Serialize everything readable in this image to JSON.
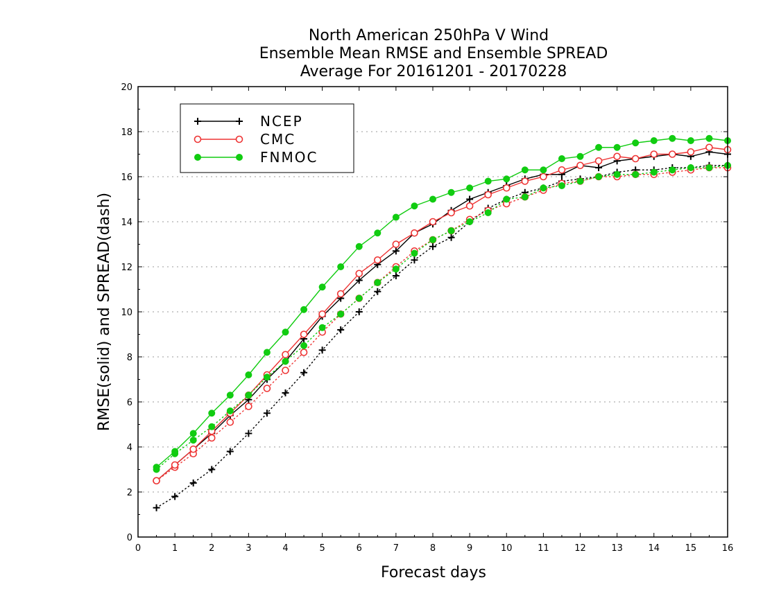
{
  "chart_data": {
    "type": "line",
    "title": [
      "North American 250hPa V Wind",
      "Ensemble Mean RMSE and Ensemble SPREAD",
      "Average For 20161201 - 20170228"
    ],
    "xlabel": "Forecast days",
    "ylabel": "RMSE(solid) and SPREAD(dash)",
    "xlim": [
      0,
      16
    ],
    "ylim": [
      0,
      20
    ],
    "xticks": [
      0,
      1,
      2,
      3,
      4,
      5,
      6,
      7,
      8,
      9,
      10,
      11,
      12,
      13,
      14,
      15,
      16
    ],
    "yticks": [
      0,
      2,
      4,
      6,
      8,
      10,
      12,
      14,
      16,
      18,
      20
    ],
    "grid": "horizontal dotted",
    "legend_position": "top-left",
    "x": [
      0.5,
      1,
      1.5,
      2,
      2.5,
      3,
      3.5,
      4,
      4.5,
      5,
      5.5,
      6,
      6.5,
      7,
      7.5,
      8,
      8.5,
      9,
      9.5,
      10,
      10.5,
      11,
      11.5,
      12,
      12.5,
      13,
      13.5,
      14,
      14.5,
      15,
      15.5,
      16
    ],
    "series": [
      {
        "name": "NCEP",
        "marker": "plus",
        "color": "#000000",
        "rmse": [
          2.5,
          3.2,
          3.9,
          4.6,
          5.4,
          6.1,
          7.0,
          7.8,
          8.8,
          9.8,
          10.6,
          11.4,
          12.1,
          12.7,
          13.5,
          13.9,
          14.5,
          15.0,
          15.3,
          15.6,
          15.9,
          16.1,
          16.1,
          16.5,
          16.4,
          16.7,
          16.8,
          16.9,
          17.0,
          16.9,
          17.1,
          17.0
        ],
        "spread": [
          1.3,
          1.8,
          2.4,
          3.0,
          3.8,
          4.6,
          5.5,
          6.4,
          7.3,
          8.3,
          9.2,
          10.0,
          10.9,
          11.6,
          12.3,
          12.9,
          13.3,
          14.0,
          14.6,
          15.0,
          15.3,
          15.5,
          15.8,
          15.9,
          16.0,
          16.2,
          16.3,
          16.3,
          16.4,
          16.4,
          16.5,
          16.5
        ]
      },
      {
        "name": "CMC",
        "marker": "open-circle",
        "color": "#ee3333",
        "rmse": [
          2.5,
          3.2,
          3.9,
          4.7,
          5.5,
          6.3,
          7.2,
          8.1,
          9.0,
          9.9,
          10.8,
          11.7,
          12.3,
          13.0,
          13.5,
          14.0,
          14.4,
          14.7,
          15.2,
          15.5,
          15.8,
          16.0,
          16.3,
          16.5,
          16.7,
          16.9,
          16.8,
          17.0,
          17.0,
          17.1,
          17.3,
          17.2
        ],
        "spread": [
          2.5,
          3.1,
          3.7,
          4.4,
          5.1,
          5.8,
          6.6,
          7.4,
          8.2,
          9.1,
          9.9,
          10.6,
          11.3,
          12.0,
          12.7,
          13.2,
          13.6,
          14.1,
          14.5,
          14.8,
          15.1,
          15.4,
          15.7,
          15.8,
          16.0,
          16.0,
          16.1,
          16.1,
          16.2,
          16.3,
          16.4,
          16.4
        ]
      },
      {
        "name": "FNMOC",
        "marker": "filled-circle",
        "color": "#11cc11",
        "rmse": [
          3.1,
          3.8,
          4.6,
          5.5,
          6.3,
          7.2,
          8.2,
          9.1,
          10.1,
          11.1,
          12.0,
          12.9,
          13.5,
          14.2,
          14.7,
          15.0,
          15.3,
          15.5,
          15.8,
          15.9,
          16.3,
          16.3,
          16.8,
          16.9,
          17.3,
          17.3,
          17.5,
          17.6,
          17.7,
          17.6,
          17.7,
          17.6
        ],
        "spread": [
          3.0,
          3.7,
          4.3,
          4.9,
          5.6,
          6.3,
          7.1,
          7.8,
          8.5,
          9.3,
          9.9,
          10.6,
          11.3,
          11.9,
          12.6,
          13.2,
          13.6,
          14.0,
          14.4,
          15.0,
          15.1,
          15.5,
          15.6,
          15.8,
          16.0,
          16.1,
          16.1,
          16.2,
          16.3,
          16.4,
          16.4,
          16.5
        ]
      }
    ]
  }
}
